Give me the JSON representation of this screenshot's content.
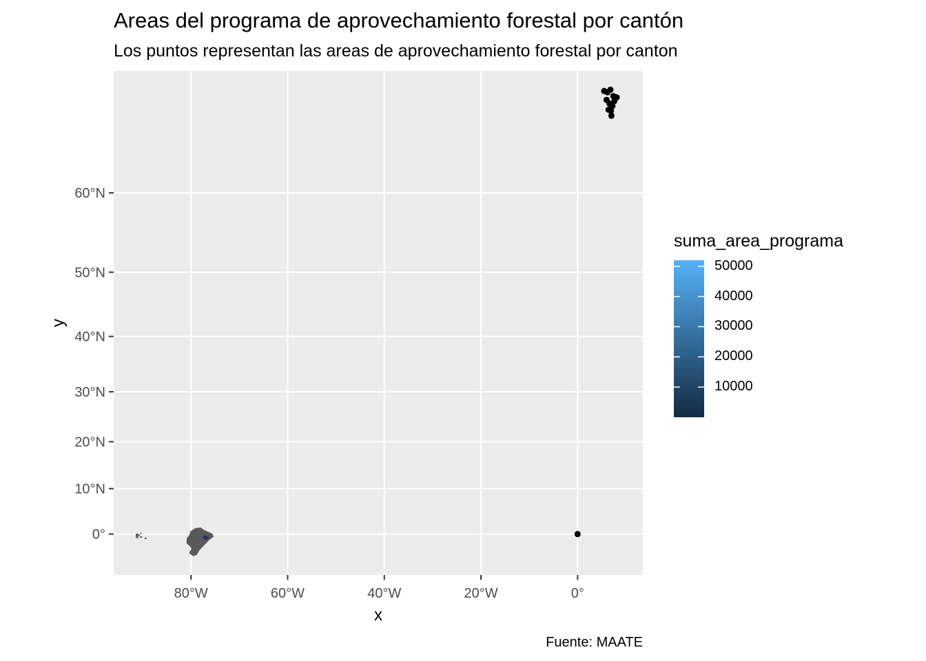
{
  "chart_data": {
    "type": "map",
    "title": "Areas del programa de aprovechamiento forestal por cantón",
    "subtitle": "Los puntos representan las areas de aprovechamiento forestal por canton",
    "caption": "Fuente: MAATE",
    "xlabel": "x",
    "ylabel": "y",
    "xlim": [
      -96,
      13.5
    ],
    "ylim": [
      -9,
      71
    ],
    "projection": "mercator",
    "grid": true,
    "panel_background": "#EBEBEB",
    "x_ticks": [
      {
        "value": -80,
        "label": "80°W"
      },
      {
        "value": -60,
        "label": "60°W"
      },
      {
        "value": -40,
        "label": "40°W"
      },
      {
        "value": -20,
        "label": "20°W"
      },
      {
        "value": 0,
        "label": "0°"
      }
    ],
    "y_ticks": [
      {
        "value": 0,
        "label": "0°"
      },
      {
        "value": 10,
        "label": "10°N"
      },
      {
        "value": 20,
        "label": "20°N"
      },
      {
        "value": 30,
        "label": "30°N"
      },
      {
        "value": 40,
        "label": "40°N"
      },
      {
        "value": 50,
        "label": "50°N"
      },
      {
        "value": 60,
        "label": "60°N"
      }
    ],
    "legend": {
      "title": "suma_area_programa",
      "position": "right",
      "type": "colorbar",
      "low_color": "#132B43",
      "high_color": "#56B1F7",
      "min": 0,
      "max": 52000,
      "breaks": [
        {
          "value": 10000,
          "label": "10000"
        },
        {
          "value": 20000,
          "label": "20000"
        },
        {
          "value": 30000,
          "label": "30000"
        },
        {
          "value": 40000,
          "label": "40000"
        },
        {
          "value": 50000,
          "label": "50000"
        }
      ]
    },
    "regions": [
      {
        "name": "mainland",
        "fill": "#595959",
        "highlight_fill": "#1F3A5A"
      },
      {
        "name": "galapagos",
        "fill": "#595959"
      }
    ],
    "points": [
      {
        "lon": 0,
        "lat": 0
      },
      {
        "lon": 5.5,
        "lat": 69.5
      },
      {
        "lon": 6.2,
        "lat": 69.4
      },
      {
        "lon": 6.8,
        "lat": 69.6
      },
      {
        "lon": 7.4,
        "lat": 69.1
      },
      {
        "lon": 8.1,
        "lat": 69.0
      },
      {
        "lon": 6.0,
        "lat": 68.8
      },
      {
        "lon": 6.6,
        "lat": 68.5
      },
      {
        "lon": 7.2,
        "lat": 68.3
      },
      {
        "lon": 6.9,
        "lat": 67.9
      },
      {
        "lon": 7.0,
        "lat": 67.5
      },
      {
        "lon": 6.4,
        "lat": 68.0
      },
      {
        "lon": 7.6,
        "lat": 68.7
      }
    ]
  }
}
